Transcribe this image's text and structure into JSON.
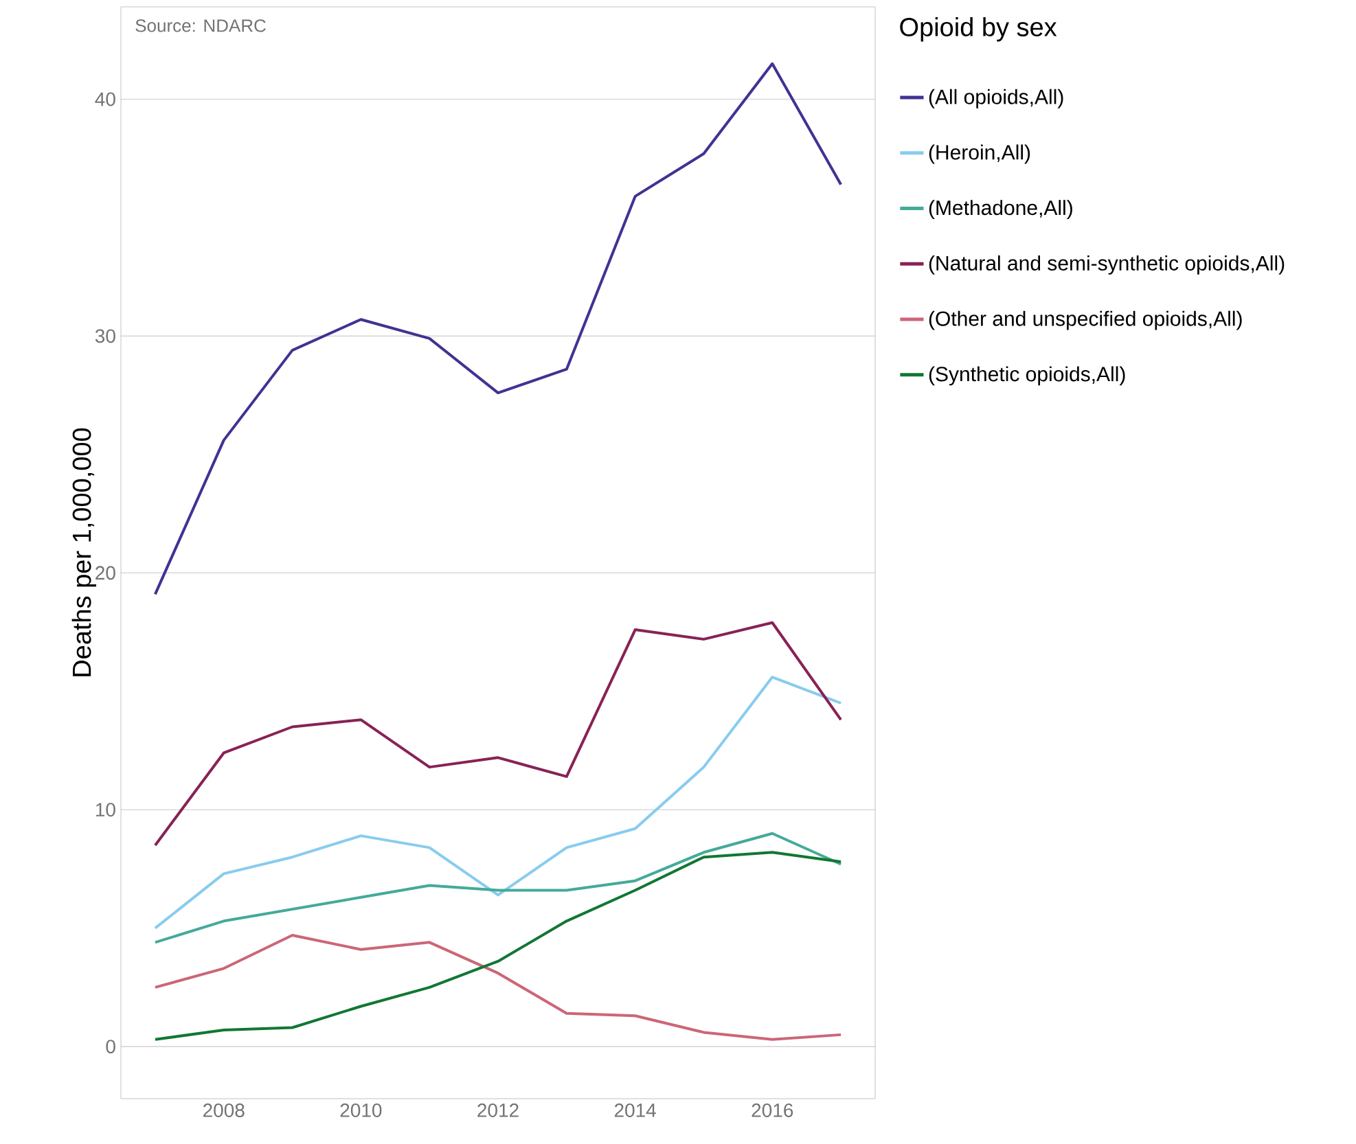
{
  "chart_data": {
    "type": "line",
    "ylabel": "Deaths per 1,000,000",
    "legend_title": "Opioid by sex",
    "annotations": [
      "Source: NDARC"
    ],
    "x": [
      2007,
      2008,
      2009,
      2010,
      2011,
      2012,
      2013,
      2014,
      2015,
      2016,
      2017
    ],
    "series": [
      {
        "name": "(All opioids,All)",
        "color": "#3f3393",
        "values": [
          19.1,
          25.6,
          29.4,
          30.7,
          29.9,
          27.6,
          28.6,
          35.9,
          37.7,
          41.5,
          36.4
        ]
      },
      {
        "name": "(Heroin,All)",
        "color": "#88ccee",
        "values": [
          5.0,
          7.3,
          8.0,
          8.9,
          8.4,
          6.4,
          8.4,
          9.2,
          11.8,
          15.6,
          14.5
        ]
      },
      {
        "name": "(Methadone,All)",
        "color": "#44aa99",
        "values": [
          4.4,
          5.3,
          5.8,
          6.3,
          6.8,
          6.6,
          6.6,
          7.0,
          8.2,
          9.0,
          7.7
        ]
      },
      {
        "name": "(Natural and semi-synthetic opioids,All)",
        "color": "#882255",
        "values": [
          8.5,
          12.4,
          13.5,
          13.8,
          11.8,
          12.2,
          11.4,
          17.6,
          17.2,
          17.9,
          13.8
        ]
      },
      {
        "name": "(Other and unspecified opioids,All)",
        "color": "#cc6677",
        "values": [
          2.5,
          3.3,
          4.7,
          4.1,
          4.4,
          3.1,
          1.4,
          1.3,
          0.6,
          0.3,
          0.5
        ]
      },
      {
        "name": "(Synthetic opioids,All)",
        "color": "#117733",
        "values": [
          0.3,
          0.7,
          0.8,
          1.7,
          2.5,
          3.6,
          5.3,
          6.6,
          8.0,
          8.2,
          7.8
        ]
      }
    ],
    "xlim": [
      2006.5,
      2017.5
    ],
    "ylim": [
      -2.2,
      43.9
    ],
    "xticks": [
      2008,
      2010,
      2012,
      2014,
      2016
    ],
    "yticks": [
      0,
      10,
      20,
      30,
      40
    ],
    "grid": "y",
    "legend": "right",
    "marker": "none",
    "line_style": "solid"
  }
}
